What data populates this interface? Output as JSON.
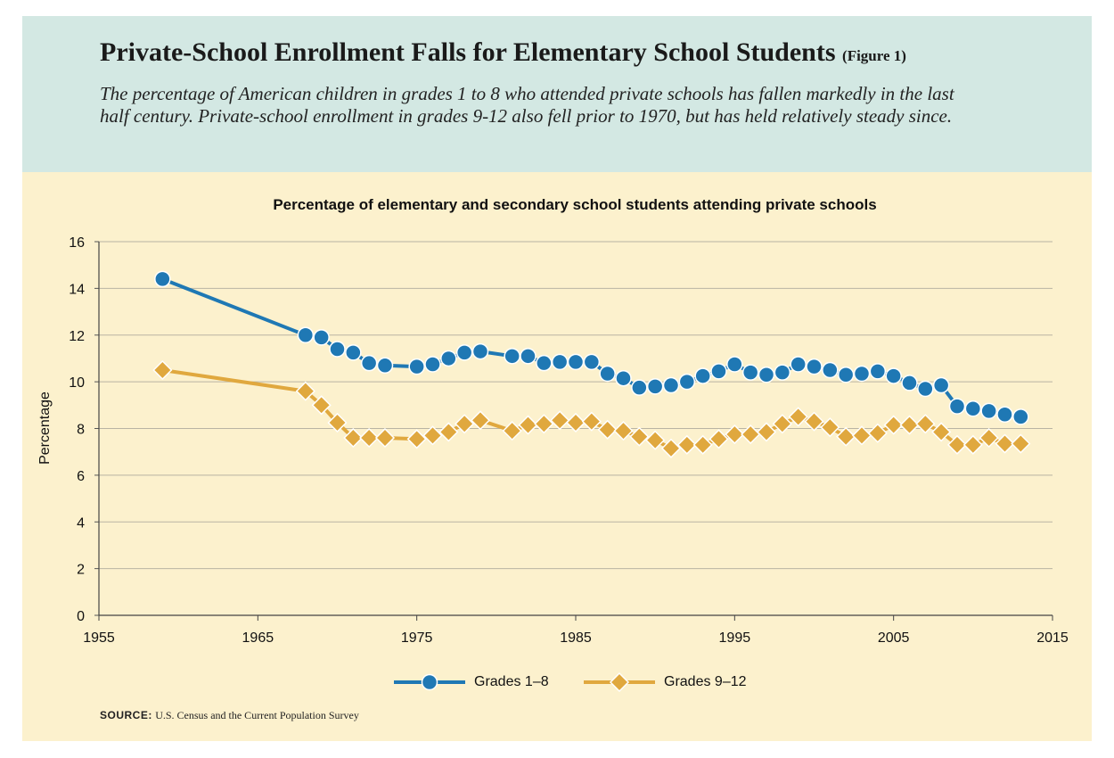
{
  "header": {
    "title": "Private-School Enrollment Falls for Elementary School Students",
    "figure_label": "(Figure 1)",
    "subtitle": "The percentage of American children in grades 1 to 8 who attended private schools has fallen markedly in the last half century. Private-school enrollment in grades 9-12 also fell prior to 1970, but has held relatively steady since."
  },
  "footer": {
    "source_label": "SOURCE:",
    "source_text": "U.S. Census and the Current Population Survey"
  },
  "chart_data": {
    "type": "line",
    "title": "Percentage of elementary and secondary school students attending private schools",
    "xlabel": "",
    "ylabel": "Percentage",
    "xlim": [
      1955,
      2015
    ],
    "ylim": [
      0,
      16
    ],
    "x_ticks": [
      1955,
      1965,
      1975,
      1985,
      1995,
      2005,
      2015
    ],
    "y_ticks": [
      0,
      2,
      4,
      6,
      8,
      10,
      12,
      14,
      16
    ],
    "grid": "horizontal",
    "legend_position": "bottom",
    "series": [
      {
        "name": "Grades 1–8",
        "color": "#1f78b4",
        "marker": "circle",
        "points": [
          [
            1959,
            14.4
          ],
          [
            1968,
            12.0
          ],
          [
            1969,
            11.9
          ],
          [
            1970,
            11.4
          ],
          [
            1971,
            11.25
          ],
          [
            1972,
            10.8
          ],
          [
            1973,
            10.7
          ],
          [
            1975,
            10.65
          ],
          [
            1976,
            10.75
          ],
          [
            1977,
            11.0
          ],
          [
            1978,
            11.25
          ],
          [
            1979,
            11.3
          ],
          [
            1981,
            11.1
          ],
          [
            1982,
            11.1
          ],
          [
            1983,
            10.8
          ],
          [
            1984,
            10.85
          ],
          [
            1985,
            10.85
          ],
          [
            1986,
            10.85
          ],
          [
            1987,
            10.35
          ],
          [
            1988,
            10.15
          ],
          [
            1989,
            9.75
          ],
          [
            1990,
            9.8
          ],
          [
            1991,
            9.85
          ],
          [
            1992,
            10.0
          ],
          [
            1993,
            10.25
          ],
          [
            1994,
            10.45
          ],
          [
            1995,
            10.75
          ],
          [
            1996,
            10.4
          ],
          [
            1997,
            10.3
          ],
          [
            1998,
            10.4
          ],
          [
            1999,
            10.75
          ],
          [
            2000,
            10.65
          ],
          [
            2001,
            10.5
          ],
          [
            2002,
            10.3
          ],
          [
            2003,
            10.35
          ],
          [
            2004,
            10.45
          ],
          [
            2005,
            10.25
          ],
          [
            2006,
            9.95
          ],
          [
            2007,
            9.7
          ],
          [
            2008,
            9.85
          ],
          [
            2009,
            8.95
          ],
          [
            2010,
            8.85
          ],
          [
            2011,
            8.75
          ],
          [
            2012,
            8.6
          ],
          [
            2013,
            8.5
          ]
        ]
      },
      {
        "name": "Grades 9–12",
        "color": "#e0a83e",
        "marker": "diamond",
        "points": [
          [
            1959,
            10.5
          ],
          [
            1968,
            9.6
          ],
          [
            1969,
            9.0
          ],
          [
            1970,
            8.25
          ],
          [
            1971,
            7.6
          ],
          [
            1972,
            7.6
          ],
          [
            1973,
            7.6
          ],
          [
            1975,
            7.55
          ],
          [
            1976,
            7.7
          ],
          [
            1977,
            7.85
          ],
          [
            1978,
            8.2
          ],
          [
            1979,
            8.35
          ],
          [
            1981,
            7.9
          ],
          [
            1982,
            8.15
          ],
          [
            1983,
            8.2
          ],
          [
            1984,
            8.35
          ],
          [
            1985,
            8.25
          ],
          [
            1986,
            8.3
          ],
          [
            1987,
            7.95
          ],
          [
            1988,
            7.9
          ],
          [
            1989,
            7.65
          ],
          [
            1990,
            7.5
          ],
          [
            1991,
            7.15
          ],
          [
            1992,
            7.3
          ],
          [
            1993,
            7.3
          ],
          [
            1994,
            7.55
          ],
          [
            1995,
            7.75
          ],
          [
            1996,
            7.75
          ],
          [
            1997,
            7.85
          ],
          [
            1998,
            8.2
          ],
          [
            1999,
            8.5
          ],
          [
            2000,
            8.3
          ],
          [
            2001,
            8.05
          ],
          [
            2002,
            7.65
          ],
          [
            2003,
            7.7
          ],
          [
            2004,
            7.8
          ],
          [
            2005,
            8.15
          ],
          [
            2006,
            8.15
          ],
          [
            2007,
            8.2
          ],
          [
            2008,
            7.85
          ],
          [
            2009,
            7.3
          ],
          [
            2010,
            7.3
          ],
          [
            2011,
            7.6
          ],
          [
            2012,
            7.35
          ],
          [
            2013,
            7.35
          ]
        ]
      }
    ]
  }
}
